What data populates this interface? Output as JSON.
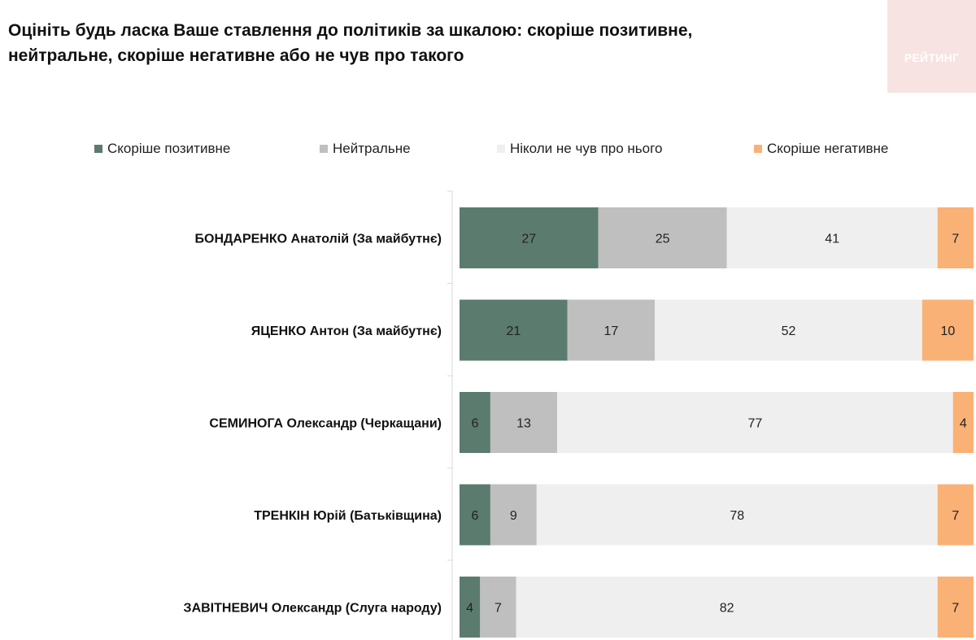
{
  "header": {
    "title_line1": "Оцініть будь ласка Ваше ставлення до політиків за шкалою: скоріше позитивне,",
    "title_line2": "нейтральне, скоріше негативне або не чув про такого",
    "brand": "РЕЙТИНГ"
  },
  "colors": {
    "positive": "#5b7b6e",
    "neutral": "#bfbfbf",
    "never_heard": "#efefef",
    "negative": "#f9b176",
    "brand_bg": "#f7e3e1",
    "axis": "#d9d9d9"
  },
  "chart_data": {
    "type": "bar",
    "orientation": "horizontal",
    "stacked": true,
    "xlim": [
      0,
      100
    ],
    "legend_position": "top",
    "categories": [
      "БОНДАРЕНКО Анатолій (За майбутнє)",
      "ЯЦЕНКО Антон (За майбутнє)",
      "СЕМИНОГА Олександр (Черкащани)",
      "ТРЕНКІН Юрій (Батьківщина)",
      "ЗАВІТНЕВИЧ Олександр (Слуга народу)"
    ],
    "series": [
      {
        "name": "Скоріше позитивне",
        "color": "#5b7b6e",
        "values": [
          27,
          21,
          6,
          6,
          4
        ]
      },
      {
        "name": "Нейтральне",
        "color": "#bfbfbf",
        "values": [
          25,
          17,
          13,
          9,
          7
        ]
      },
      {
        "name": "Ніколи не чув про нього",
        "color": "#efefef",
        "values": [
          41,
          52,
          77,
          78,
          82
        ]
      },
      {
        "name": "Скоріше негативне",
        "color": "#f9b176",
        "values": [
          7,
          10,
          4,
          7,
          7
        ]
      }
    ]
  }
}
